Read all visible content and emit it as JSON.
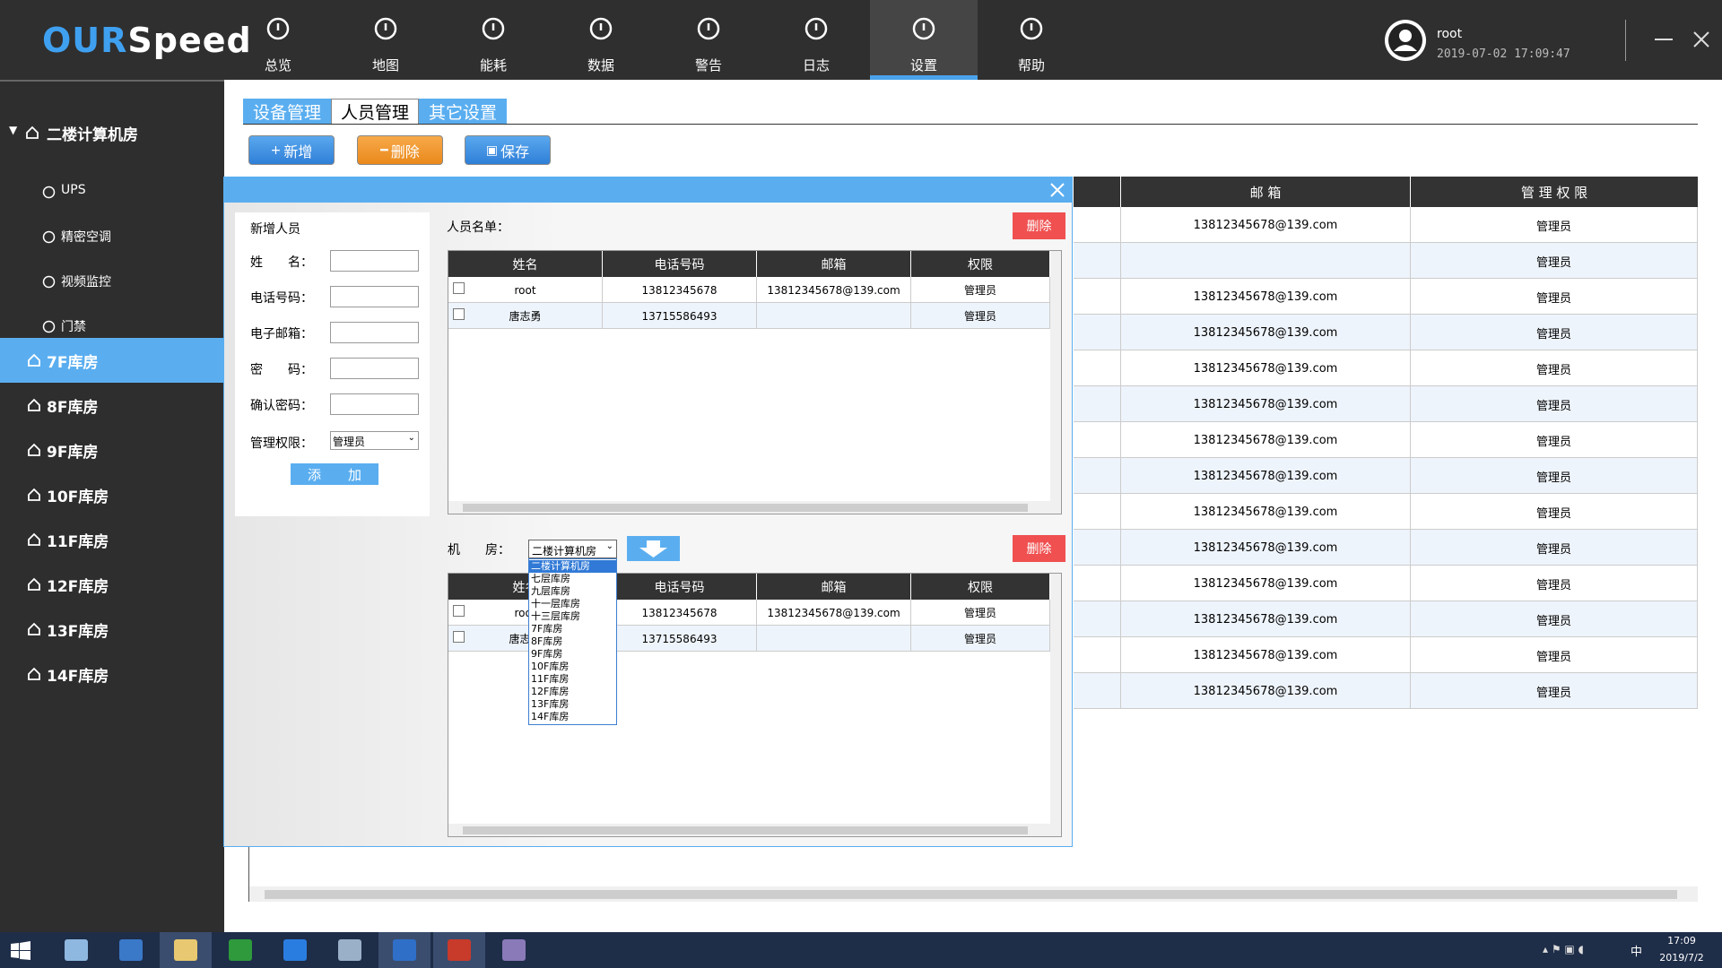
{
  "header": {
    "logo_a": "OUR",
    "logo_b": "Speed",
    "nav": [
      "总览",
      "地图",
      "能耗",
      "数据",
      "警告",
      "日志",
      "设置",
      "帮助"
    ],
    "user": "root",
    "datetime": "2019-07-02 17:09:47"
  },
  "sidebar": {
    "group": "二楼计算机房",
    "children": [
      "UPS",
      "精密空调",
      "视频监控",
      "门禁"
    ],
    "rooms": [
      "7F库房",
      "8F库房",
      "9F库房",
      "10F库房",
      "11F库房",
      "12F库房",
      "13F库房",
      "14F库房"
    ]
  },
  "tabs": [
    "设备管理",
    "人员管理",
    "其它设置"
  ],
  "toolbar": [
    "新增",
    "删除",
    "保存"
  ],
  "back_table": {
    "headers": [
      "邮 箱",
      "管 理 权 限"
    ],
    "rows": [
      [
        "13812345678@139.com",
        "管理员"
      ],
      [
        null,
        "管理员"
      ],
      [
        "13812345678@139.com",
        "管理员"
      ],
      [
        "13812345678@139.com",
        "管理员"
      ],
      [
        "13812345678@139.com",
        "管理员"
      ],
      [
        "13812345678@139.com",
        "管理员"
      ],
      [
        "13812345678@139.com",
        "管理员"
      ],
      [
        "13812345678@139.com",
        "管理员"
      ],
      [
        "13812345678@139.com",
        "管理员"
      ],
      [
        "13812345678@139.com",
        "管理员"
      ],
      [
        "13812345678@139.com",
        "管理员"
      ],
      [
        "13812345678@139.com",
        "管理员"
      ],
      [
        "13812345678@139.com",
        "管理员"
      ],
      [
        "13812345678@139.com",
        "管理员"
      ]
    ]
  },
  "dialog": {
    "form_title": "新增人员",
    "fields": [
      "姓　　名：",
      "电话号码：",
      "电子邮箱：",
      "密　　码：",
      "确认密码："
    ],
    "role_label": "管理权限：",
    "role_value": "管理员",
    "add_button": "添　　加",
    "list_title": "人员名单：",
    "delete": "删除",
    "columns": [
      "姓名",
      "电话号码",
      "邮箱",
      "权限"
    ],
    "rows": [
      [
        "root",
        "13812345678",
        "13812345678@139.com",
        "管理员"
      ],
      [
        "唐志勇",
        "13715586493",
        null,
        "管理员"
      ]
    ],
    "room_label": "机　　房：",
    "room_value": "二楼计算机房",
    "room_options": [
      "二楼计算机房",
      "七层库房",
      "九层库房",
      "十一层库房",
      "十三层库房",
      "7F库房",
      "8F库房",
      "9F库房",
      "10F库房",
      "11F库房",
      "12F库房",
      "13F库房",
      "14F库房"
    ],
    "bottom_rows": [
      [
        "root",
        "13812345678",
        "13812345678@139.com",
        "管理员"
      ],
      [
        "唐志勇",
        "13715586493",
        null,
        "管理员"
      ]
    ]
  },
  "taskbar": {
    "ime": "中",
    "time": "17:09",
    "date": "2019/7/2"
  }
}
